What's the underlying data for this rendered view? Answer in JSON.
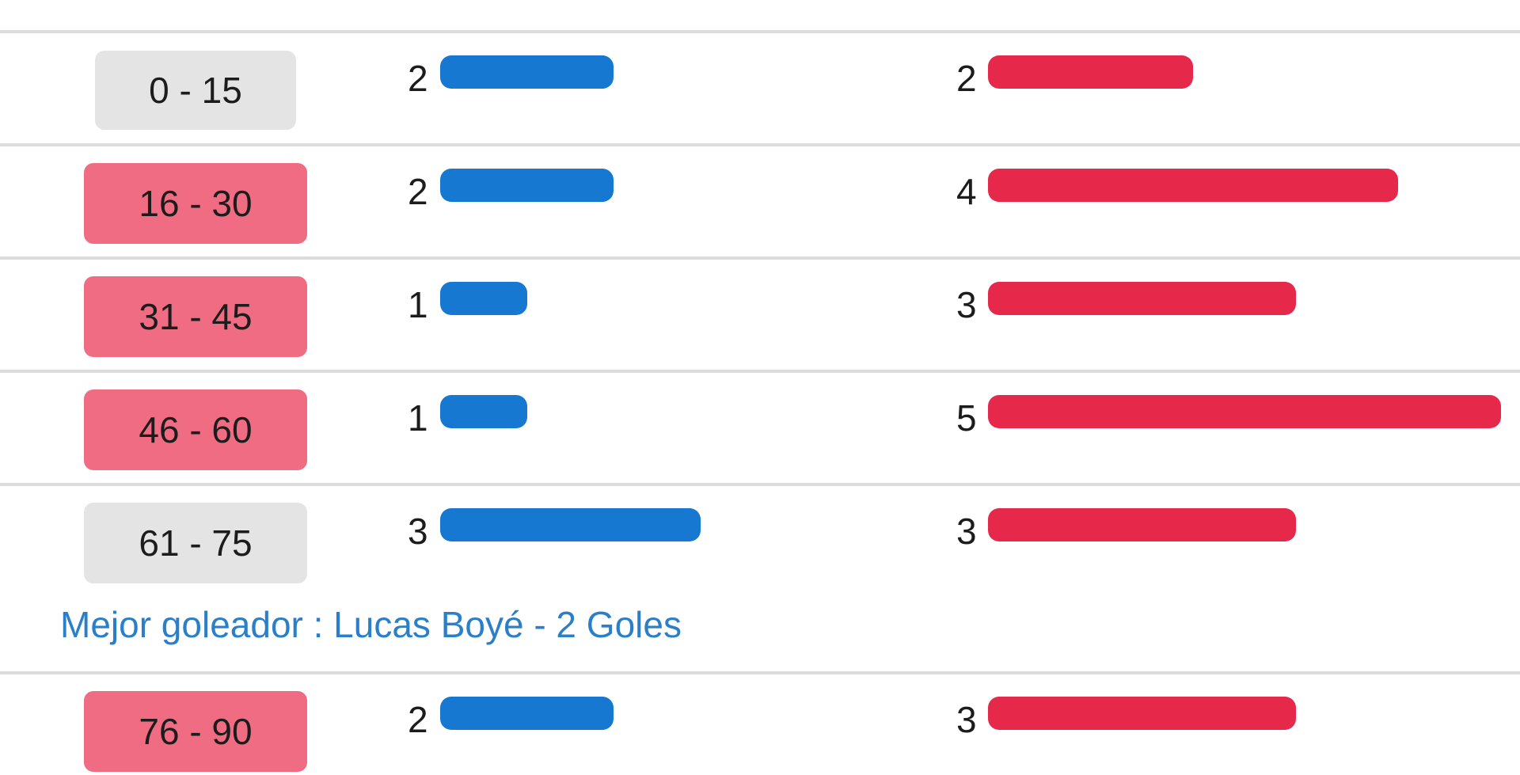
{
  "chart_data": {
    "type": "bar",
    "categories": [
      "0 - 15",
      "16 - 30",
      "31 - 45",
      "46 - 60",
      "61 - 75",
      "76 - 90"
    ],
    "category_highlight": [
      "gray",
      "red",
      "red",
      "red",
      "gray",
      "red"
    ],
    "series": [
      {
        "values": [
          2,
          2,
          1,
          1,
          3,
          2
        ],
        "color": "#1778d2"
      },
      {
        "values": [
          2,
          4,
          3,
          5,
          3,
          3
        ],
        "color": "#e6284b"
      }
    ],
    "colors": {
      "highlight_red": "#ef6c83",
      "neutral_gray": "#e4e4e4",
      "scorer_text": "#2a7fc8"
    }
  },
  "scorer_note": "Mejor goleador : Lucas Boyé - 2 Goles"
}
